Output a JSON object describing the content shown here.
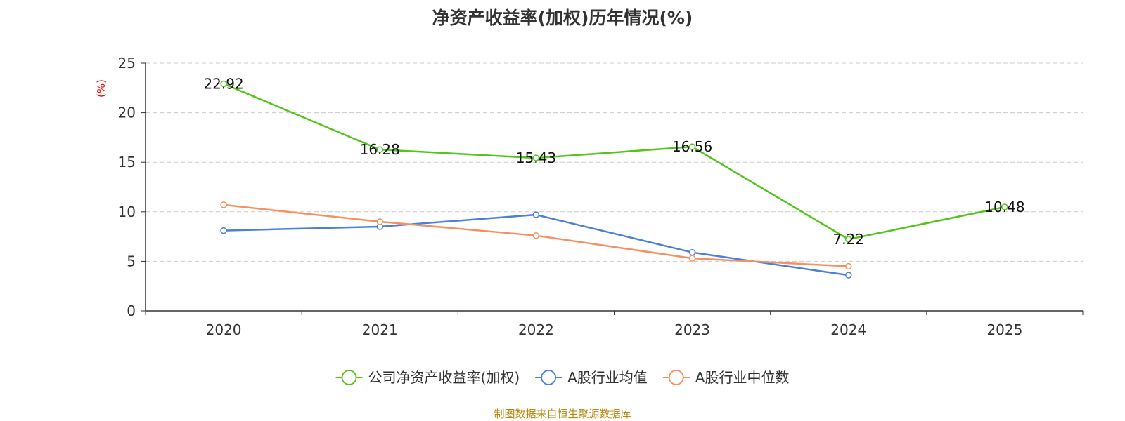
{
  "chart_data": {
    "type": "line",
    "title": "净资产收益率(加权)历年情况(%)",
    "ylabel": "(%)",
    "xlabel": "",
    "ylim": [
      0,
      25
    ],
    "yticks": [
      0,
      5,
      10,
      15,
      20,
      25
    ],
    "categories": [
      "2020",
      "2021",
      "2022",
      "2023",
      "2024",
      "2025"
    ],
    "grid": true,
    "legend_position": "bottom",
    "series": [
      {
        "name": "公司净资产收益率(加权)",
        "color": "#52c41a",
        "values": [
          22.92,
          16.28,
          15.43,
          16.56,
          7.22,
          10.48
        ],
        "show_labels": true
      },
      {
        "name": "A股行业均值",
        "color": "#4a7fdc",
        "values": [
          8.1,
          8.5,
          9.7,
          5.9,
          3.6,
          null
        ],
        "show_labels": false
      },
      {
        "name": "A股行业中位数",
        "color": "#f79060",
        "values": [
          10.7,
          9.0,
          7.6,
          5.3,
          4.5,
          null
        ],
        "show_labels": false
      }
    ]
  },
  "source": "制图数据来自恒生聚源数据库"
}
